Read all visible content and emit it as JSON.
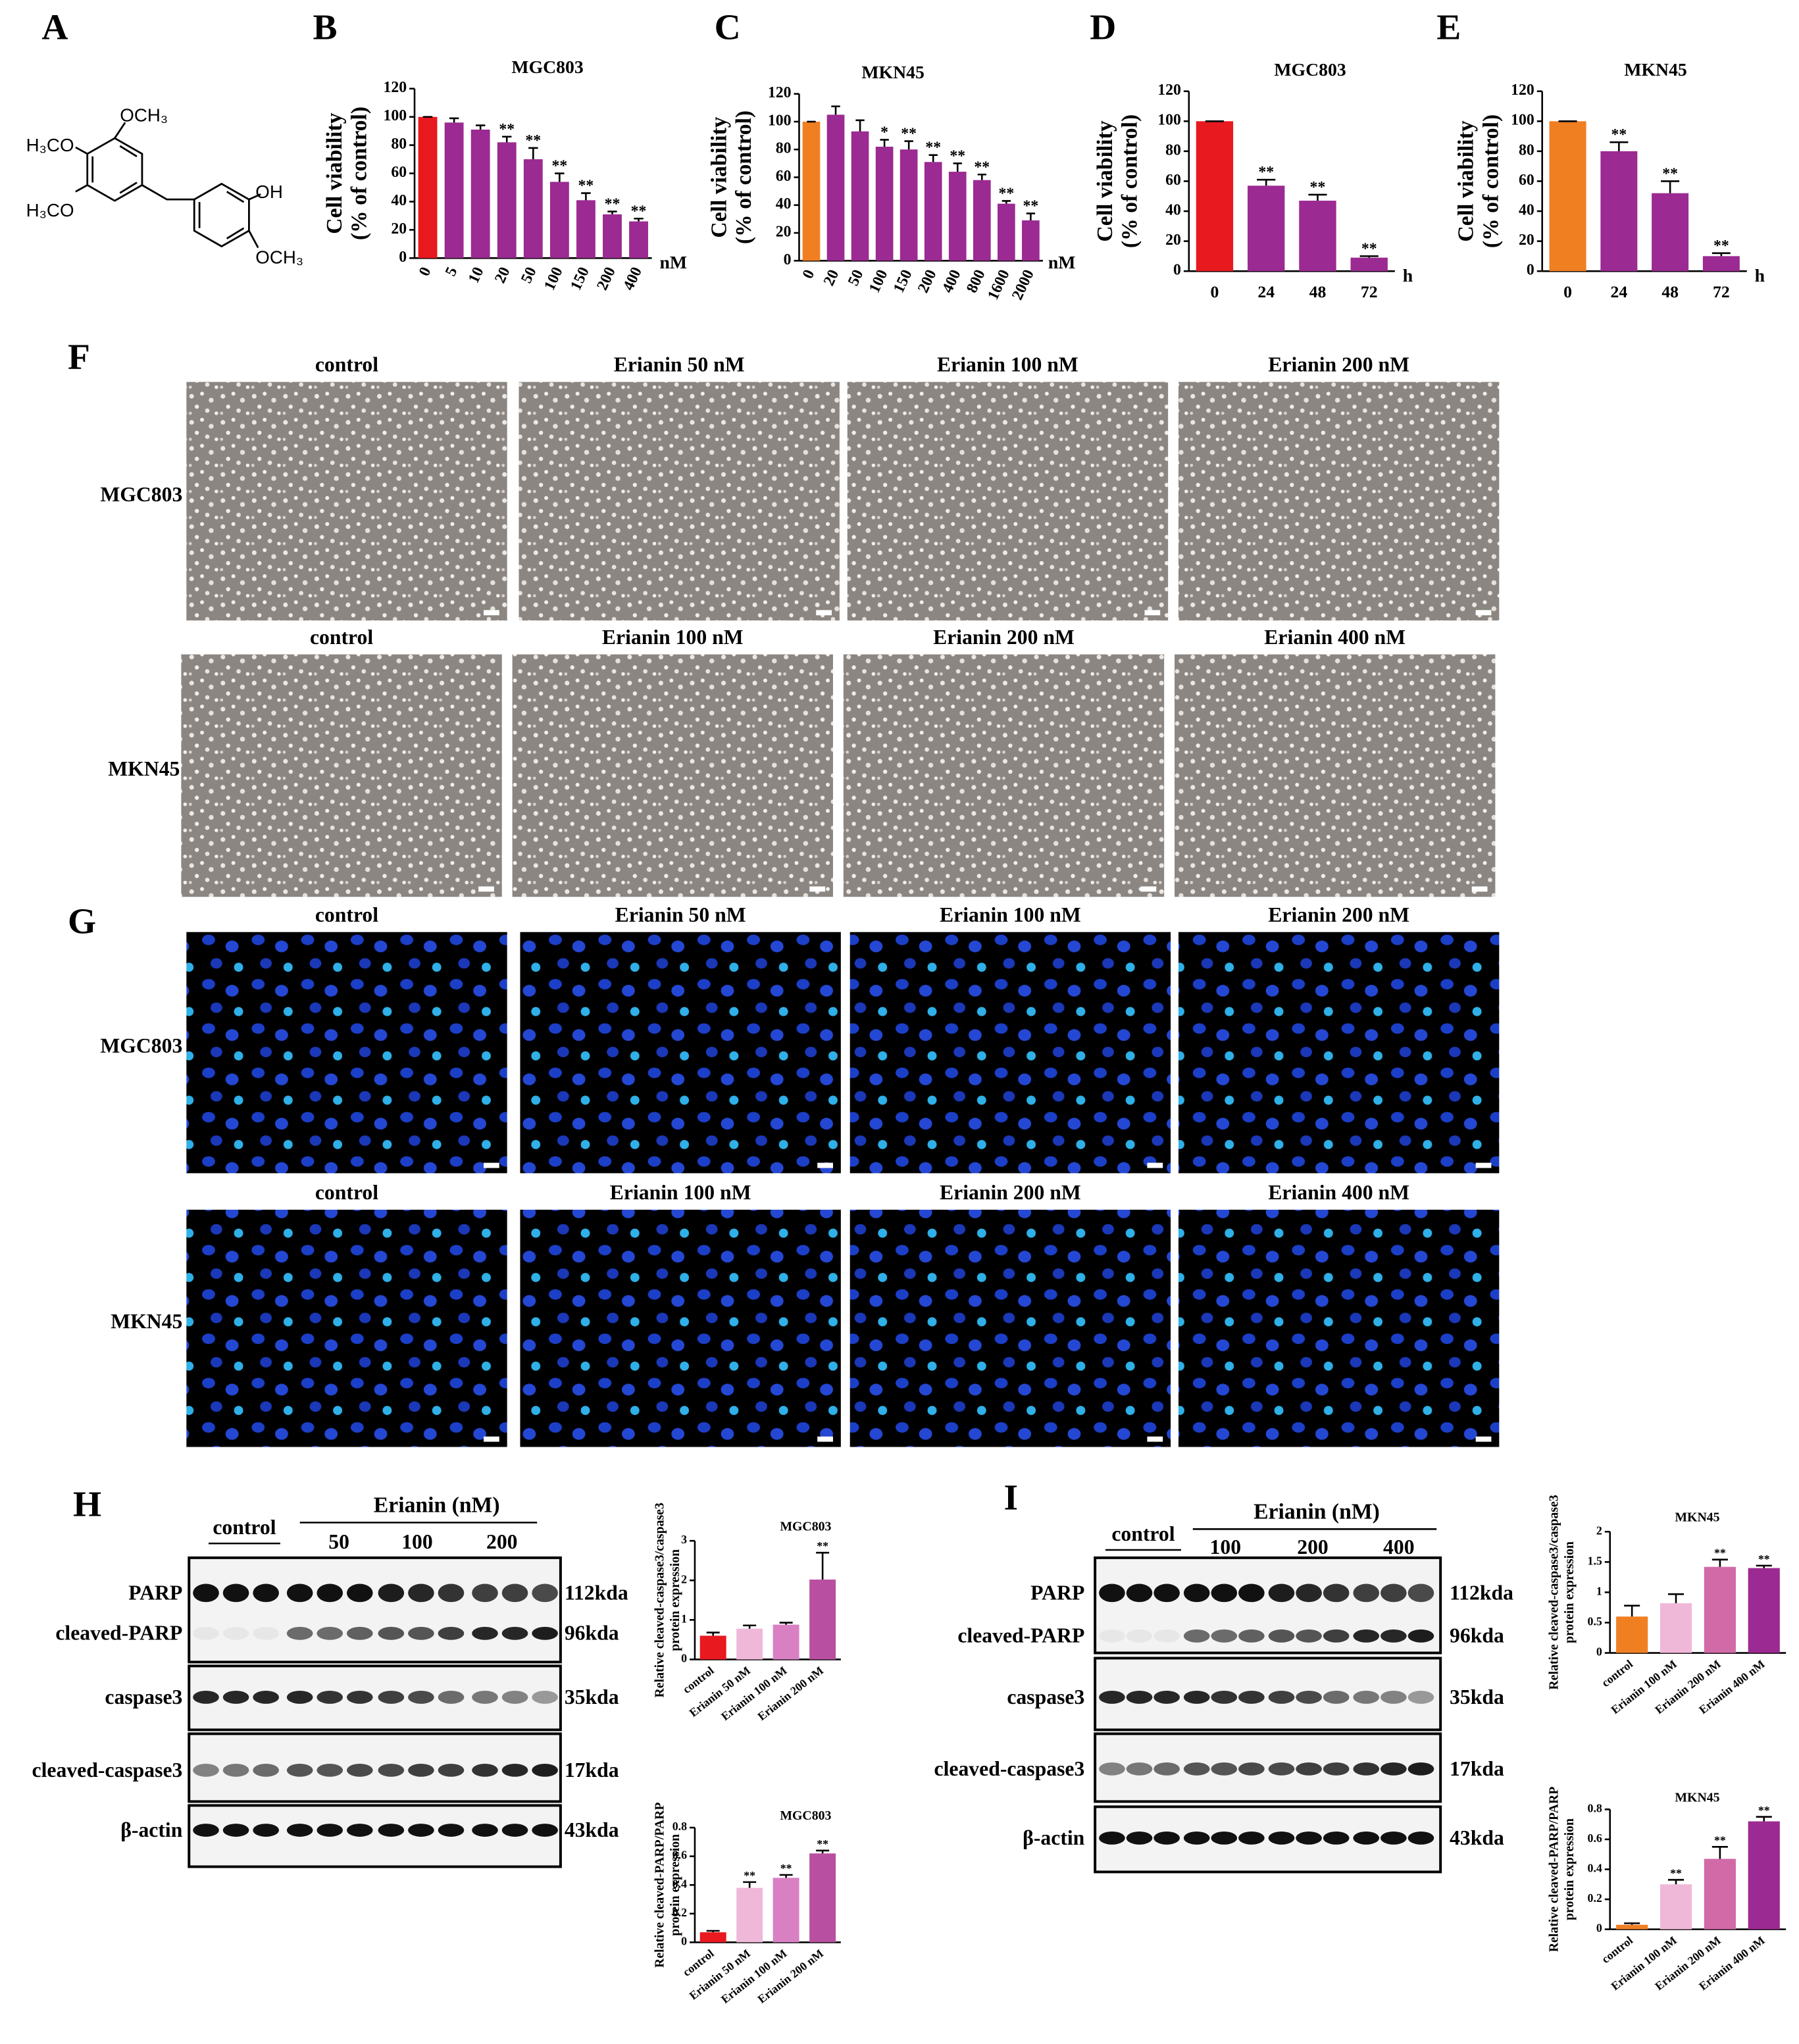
{
  "panel_labels": [
    "A",
    "B",
    "C",
    "D",
    "E",
    "F",
    "G",
    "H",
    "I"
  ],
  "structure": {
    "labels": [
      "OCH₃",
      "H₃CO",
      "H₃CO",
      "OH",
      "OCH₃"
    ]
  },
  "chart_data": [
    {
      "type": "bar",
      "title": "MGC803",
      "categories": [
        "0",
        "5",
        "10",
        "20",
        "50",
        "100",
        "150",
        "200",
        "400"
      ],
      "values": [
        100,
        96,
        91,
        82,
        70,
        54,
        41,
        31,
        26
      ],
      "errors": [
        0,
        3,
        3,
        4,
        8,
        6,
        5,
        2,
        2
      ],
      "value_annotations": [
        null,
        null,
        null,
        "**",
        "**",
        "**",
        "**",
        "**",
        "**"
      ],
      "colors": [
        "#e8191f",
        "#9b2a92",
        "#9b2a92",
        "#9b2a92",
        "#9b2a92",
        "#9b2a92",
        "#9b2a92",
        "#9b2a92",
        "#9b2a92"
      ],
      "ylabel": [
        "Cell viability",
        "(% of control)"
      ],
      "xlabel": "nM",
      "ylim": [
        0,
        120
      ],
      "yticks": [
        0,
        20,
        40,
        60,
        80,
        100,
        120
      ]
    },
    {
      "type": "bar",
      "title": "MKN45",
      "categories": [
        "0",
        "20",
        "50",
        "100",
        "150",
        "200",
        "400",
        "800",
        "1600",
        "2000"
      ],
      "values": [
        100,
        105,
        93,
        82,
        80,
        71,
        64,
        58,
        41,
        29
      ],
      "errors": [
        0,
        6,
        8,
        5,
        6,
        5,
        6,
        4,
        2,
        5
      ],
      "value_annotations": [
        null,
        null,
        null,
        "*",
        "**",
        "**",
        "**",
        "**",
        "**",
        "**"
      ],
      "colors": [
        "#f07f22",
        "#9b2a92",
        "#9b2a92",
        "#9b2a92",
        "#9b2a92",
        "#9b2a92",
        "#9b2a92",
        "#9b2a92",
        "#9b2a92",
        "#9b2a92"
      ],
      "ylabel": [
        "Cell viability",
        "(% of control)"
      ],
      "xlabel": "nM",
      "ylim": [
        0,
        120
      ],
      "yticks": [
        0,
        20,
        40,
        60,
        80,
        100,
        120
      ]
    },
    {
      "type": "bar",
      "title": "MGC803",
      "categories": [
        "0",
        "24",
        "48",
        "72"
      ],
      "values": [
        100,
        57,
        47,
        9
      ],
      "errors": [
        0,
        4,
        4,
        1
      ],
      "value_annotations": [
        null,
        "**",
        "**",
        "**"
      ],
      "colors": [
        "#e8191f",
        "#9b2a92",
        "#9b2a92",
        "#9b2a92"
      ],
      "ylabel": [
        "Cell viability",
        "(% of control)"
      ],
      "xlabel": "h",
      "ylim": [
        0,
        120
      ],
      "yticks": [
        0,
        20,
        40,
        60,
        80,
        100,
        120
      ]
    },
    {
      "type": "bar",
      "title": "MKN45",
      "categories": [
        "0",
        "24",
        "48",
        "72"
      ],
      "values": [
        100,
        80,
        52,
        10
      ],
      "errors": [
        0,
        6,
        8,
        2
      ],
      "value_annotations": [
        null,
        "**",
        "**",
        "**"
      ],
      "colors": [
        "#f07f22",
        "#9b2a92",
        "#9b2a92",
        "#9b2a92"
      ],
      "ylabel": [
        "Cell viability",
        "(% of control)"
      ],
      "xlabel": "h",
      "ylim": [
        0,
        120
      ],
      "yticks": [
        0,
        20,
        40,
        60,
        80,
        100,
        120
      ]
    },
    {
      "type": "bar",
      "title": "MGC803",
      "categories": [
        "control",
        "Erianin 50 nM",
        "Erianin 100 nM",
        "Erianin 200 nM"
      ],
      "values": [
        0.6,
        0.78,
        0.88,
        2.02
      ],
      "errors": [
        0.08,
        0.08,
        0.05,
        0.68
      ],
      "value_annotations": [
        null,
        null,
        null,
        "**"
      ],
      "colors": [
        "#e8191f",
        "#f0b8d8",
        "#d980c3",
        "#b84fa0"
      ],
      "ylabel": [
        "Relative cleaved-caspase3/caspase3",
        "protein expression"
      ],
      "ylim": [
        0,
        3
      ],
      "yticks": [
        0,
        1,
        2,
        3
      ]
    },
    {
      "type": "bar",
      "title": "MGC803",
      "categories": [
        "control",
        "Erianin 50 nM",
        "Erianin 100 nM",
        "Erianin 200 nM"
      ],
      "values": [
        0.07,
        0.38,
        0.45,
        0.62
      ],
      "errors": [
        0.01,
        0.04,
        0.02,
        0.02
      ],
      "value_annotations": [
        null,
        "**",
        "**",
        "**"
      ],
      "colors": [
        "#e8191f",
        "#f0b8d8",
        "#d980c3",
        "#b84fa0"
      ],
      "ylabel": [
        "Relative cleaved-PARP/PARP",
        "protein expression"
      ],
      "ylim": [
        0,
        0.8
      ],
      "yticks": [
        0,
        0.2,
        0.4,
        0.6,
        0.8
      ]
    },
    {
      "type": "bar",
      "title": "MKN45",
      "categories": [
        "control",
        "Erianin 100 nM",
        "Erianin 200 nM",
        "Erianin 400 nM"
      ],
      "values": [
        0.6,
        0.82,
        1.42,
        1.4
      ],
      "errors": [
        0.18,
        0.15,
        0.12,
        0.04
      ],
      "value_annotations": [
        null,
        null,
        "**",
        "**"
      ],
      "colors": [
        "#f07f22",
        "#f0b8d8",
        "#d26aa8",
        "#9b2a92"
      ],
      "ylabel": [
        "Relative cleaved-caspase3/caspase3",
        "protein expression"
      ],
      "ylim": [
        0,
        2
      ],
      "yticks": [
        0,
        0.5,
        1,
        1.5,
        2
      ]
    },
    {
      "type": "bar",
      "title": "MKN45",
      "categories": [
        "control",
        "Erianin 100 nM",
        "Erianin 200 nM",
        "Erianin 400 nM"
      ],
      "values": [
        0.03,
        0.3,
        0.47,
        0.72
      ],
      "errors": [
        0.01,
        0.03,
        0.08,
        0.03
      ],
      "value_annotations": [
        null,
        "**",
        "**",
        "**"
      ],
      "colors": [
        "#f07f22",
        "#f0b8d8",
        "#d26aa8",
        "#9b2a92"
      ],
      "ylabel": [
        "Relative cleaved-PARP/PARP",
        "protein expression"
      ],
      "ylim": [
        0,
        0.8
      ],
      "yticks": [
        0,
        0.2,
        0.4,
        0.6,
        0.8
      ]
    }
  ],
  "micrographs": [
    {
      "rows": [
        {
          "label": "MGC803",
          "columns": [
            "control",
            "Erianin 50 nM",
            "Erianin 100 nM",
            "Erianin 200 nM"
          ]
        },
        {
          "label": "MKN45",
          "columns": [
            "control",
            "Erianin 100 nM",
            "Erianin 200 nM",
            "Erianin 400 nM"
          ]
        }
      ]
    },
    {
      "rows": [
        {
          "label": "MGC803",
          "columns": [
            "control",
            "Erianin 50 nM",
            "Erianin 100 nM",
            "Erianin 200 nM"
          ]
        },
        {
          "label": "MKN45",
          "columns": [
            "control",
            "Erianin 100 nM",
            "Erianin 200 nM",
            "Erianin 400 nM"
          ]
        }
      ]
    }
  ],
  "blots": [
    {
      "control_label": "control",
      "treatment_label": "Erianin (nM)",
      "doses": [
        "50",
        "100",
        "200"
      ],
      "bands": [
        {
          "name": "PARP",
          "size": "112kda"
        },
        {
          "name": "cleaved-PARP",
          "size": "96kda"
        },
        {
          "name": "caspase3",
          "size": "35kda"
        },
        {
          "name": "cleaved-caspase3",
          "size": "17kda"
        },
        {
          "name": "β-actin",
          "size": "43kda"
        }
      ]
    },
    {
      "control_label": "control",
      "treatment_label": "Erianin (nM)",
      "doses": [
        "100",
        "200",
        "400"
      ],
      "bands": [
        {
          "name": "PARP",
          "size": "112kda"
        },
        {
          "name": "cleaved-PARP",
          "size": "96kda"
        },
        {
          "name": "caspase3",
          "size": "35kda"
        },
        {
          "name": "cleaved-caspase3",
          "size": "17kda"
        },
        {
          "name": "β-actin",
          "size": "43kda"
        }
      ]
    }
  ]
}
